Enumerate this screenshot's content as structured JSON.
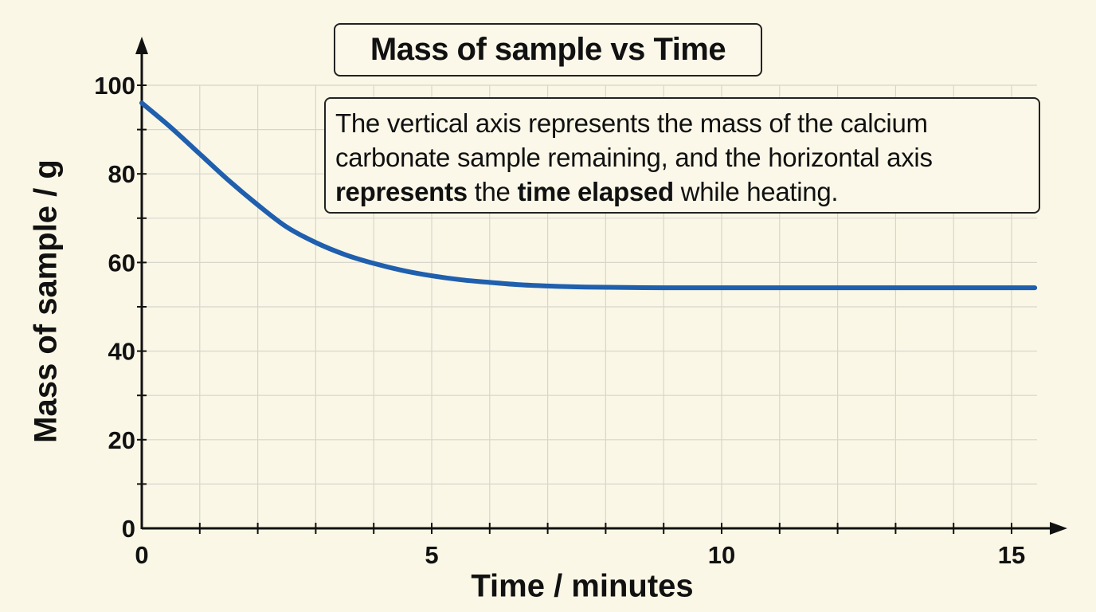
{
  "chart_data": {
    "type": "line",
    "title": "Mass of sample vs Time",
    "xlabel": "Time / minutes",
    "ylabel": "Mass of sample / g",
    "xlim": [
      0,
      15.4
    ],
    "ylim": [
      0,
      100
    ],
    "x_ticks": [
      0,
      5,
      10,
      15
    ],
    "y_ticks": [
      0,
      20,
      40,
      60,
      80,
      100
    ],
    "grid": true,
    "series": [
      {
        "color": "#1f5fae",
        "x": [
          0,
          0.5,
          1,
          1.5,
          2,
          2.5,
          3,
          3.5,
          4,
          4.5,
          5,
          5.5,
          6,
          6.5,
          7,
          7.5,
          8,
          9,
          10,
          11,
          12,
          13,
          14,
          15,
          15.4
        ],
        "y": [
          96,
          90.5,
          84.5,
          78.5,
          73,
          68,
          64.5,
          61.8,
          59.8,
          58.2,
          57,
          56.1,
          55.5,
          55,
          54.7,
          54.5,
          54.4,
          54.3,
          54.3,
          54.3,
          54.3,
          54.3,
          54.3,
          54.3,
          54.3
        ]
      }
    ],
    "annotation": {
      "line1": "The vertical axis represents the mass of the calcium",
      "line2": "carbonate sample remaining, and the horizontal axis",
      "line3_bold1": "represents",
      "line3_mid": " the ",
      "line3_bold2": "time elapsed",
      "line3_end": " while heating."
    }
  }
}
